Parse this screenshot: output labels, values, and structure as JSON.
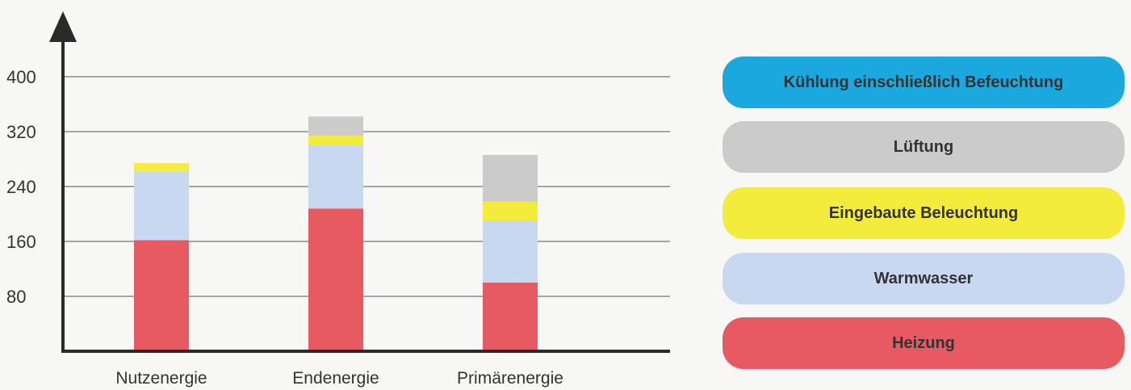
{
  "chart_data": {
    "type": "bar",
    "stacked": true,
    "categories": [
      "Nutzenergie",
      "Endenergie",
      "Primärenergie"
    ],
    "y_ticks": [
      80,
      160,
      240,
      320,
      400
    ],
    "ylim": [
      0,
      440
    ],
    "grid": true,
    "legend_position": "right",
    "series": [
      {
        "name": "Heizung",
        "color": "#e85a62",
        "values": [
          162,
          208,
          100
        ]
      },
      {
        "name": "Warmwasser",
        "color": "#c8d8f0",
        "values": [
          100,
          92,
          90
        ]
      },
      {
        "name": "Eingebaute Beleuchtung",
        "color": "#f4ec3c",
        "values": [
          12,
          14,
          28
        ]
      },
      {
        "name": "Lüftung",
        "color": "#cbcbcb",
        "values": [
          0,
          28,
          68
        ]
      },
      {
        "name": "Kühlung einschließlich Befeuchtung",
        "color": "#1aa8df",
        "values": [
          0,
          0,
          0
        ]
      }
    ],
    "legend_order": [
      "Kühlung einschließlich Befeuchtung",
      "Lüftung",
      "Eingebaute Beleuchtung",
      "Warmwasser",
      "Heizung"
    ],
    "axis_color": "#2a2a2a",
    "grid_color": "#8a8a8a"
  }
}
